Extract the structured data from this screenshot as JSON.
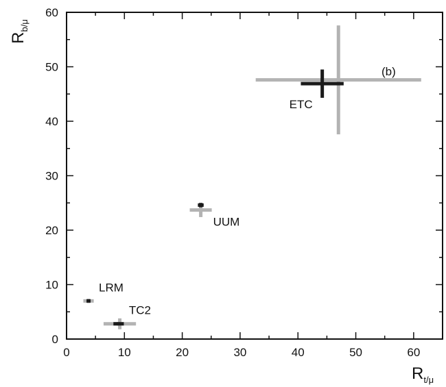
{
  "chart_data": {
    "type": "scatter",
    "panel_label": "(b)",
    "xlabel": {
      "main": "R",
      "sub": "t/μ"
    },
    "ylabel": {
      "main": "R",
      "sub": "b/μ"
    },
    "xlim": [
      0,
      65
    ],
    "ylim": [
      0,
      60
    ],
    "x_ticks": [
      0,
      10,
      20,
      30,
      40,
      50,
      60
    ],
    "y_ticks": [
      0,
      10,
      20,
      30,
      40,
      50,
      60
    ],
    "colors": {
      "light": "#b3b3b3",
      "dark": "#1a1a1a"
    },
    "points": [
      {
        "label": "ETC",
        "light": {
          "x": 47,
          "y": 47.6,
          "x_err": [
            14.3,
            14.3
          ],
          "y_err": [
            10.0,
            10.0
          ]
        },
        "dark": {
          "x": 44.2,
          "y": 46.9,
          "x_err": [
            3.7,
            3.7
          ],
          "y_err": [
            2.6,
            2.6
          ]
        }
      },
      {
        "label": "UUM",
        "light": {
          "x": 23.2,
          "y": 23.7,
          "x_err": [
            1.9,
            1.9
          ],
          "y_err": [
            1.3,
            1.3
          ]
        },
        "dark": {
          "x": 23.2,
          "y": 24.6,
          "x_err": [
            0.5,
            0.5
          ],
          "y_err": [
            0.4,
            0.4
          ]
        }
      },
      {
        "label": "LRM",
        "light": {
          "x": 3.8,
          "y": 7.0,
          "x_err": [
            0.9,
            0.9
          ],
          "y_err": [
            0.4,
            0.4
          ]
        },
        "dark": {
          "x": 3.8,
          "y": 7.0,
          "x_err": [
            0.35,
            0.35
          ],
          "y_err": [
            0.2,
            0.2
          ]
        }
      },
      {
        "label": "TC2",
        "light": {
          "x": 9.2,
          "y": 2.8,
          "x_err": [
            2.8,
            2.8
          ],
          "y_err": [
            1.0,
            1.0
          ]
        },
        "dark": {
          "x": 9.0,
          "y": 2.8,
          "x_err": [
            0.9,
            0.9
          ],
          "y_err": [
            0.3,
            0.3
          ]
        }
      }
    ]
  }
}
